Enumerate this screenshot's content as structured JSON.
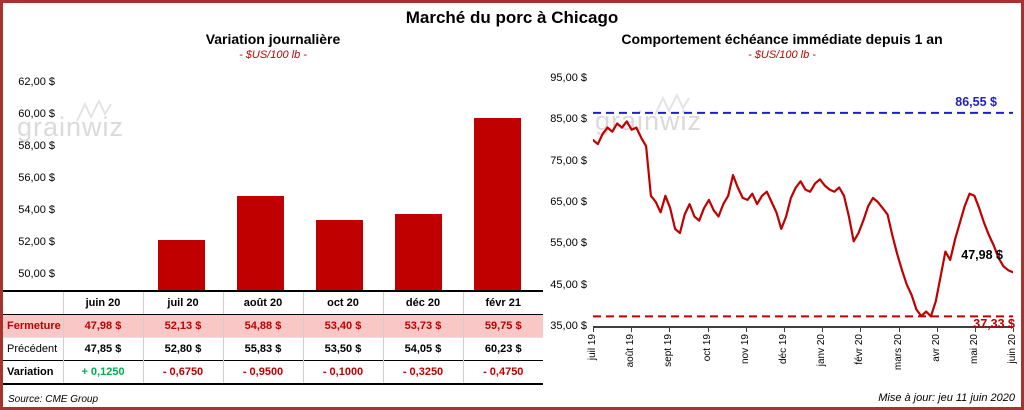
{
  "page": {
    "title": "Marché du porc à Chicago",
    "watermark": "grainwiz",
    "source_note": "Source: CME Group",
    "updated_note": "Mise à jour: jeu 11 juin 2020"
  },
  "colors": {
    "accent_red": "#C00000",
    "positive_green": "#00B050",
    "max_line_blue": "#1F1FC8",
    "row_highlight_pink": "#F9C7C6",
    "frame_border": "#A5342E",
    "watermark_gray": "#DADADA"
  },
  "table": {
    "columns": [
      "juin 20",
      "juil 20",
      "août 20",
      "oct 20",
      "déc 20",
      "févr 21"
    ],
    "rows": [
      {
        "label": "Fermeture",
        "values": [
          "47,98 $",
          "52,13 $",
          "54,88 $",
          "53,40 $",
          "53,73 $",
          "59,75 $"
        ]
      },
      {
        "label": "Précédent",
        "values": [
          "47,85 $",
          "52,80 $",
          "55,83 $",
          "53,50 $",
          "54,05 $",
          "60,23 $"
        ]
      },
      {
        "label": "Variation",
        "values": [
          "+ 0,1250",
          "- 0,6750",
          "- 0,9500",
          "- 0,1000",
          "- 0,3250",
          "- 0,4750"
        ]
      }
    ]
  },
  "chart_data": [
    {
      "type": "bar",
      "title": "Variation journalière",
      "subtitle": "- $US/100 lb -",
      "ylabel": "$US/100 lb",
      "categories": [
        "juin 20",
        "juil 20",
        "août 20",
        "oct 20",
        "déc 20",
        "févr 21"
      ],
      "values": [
        47.98,
        52.13,
        54.88,
        53.4,
        53.73,
        59.75
      ],
      "ylim": [
        50,
        62
      ],
      "ytick_values": [
        62,
        60,
        58,
        56,
        54,
        52,
        50
      ],
      "ytick_labels": [
        "62,00 $",
        "60,00 $",
        "58,00 $",
        "56,00 $",
        "54,00 $",
        "52,00 $",
        "50,00 $"
      ],
      "bar_color": "#C00000",
      "grid": false
    },
    {
      "type": "line",
      "title": "Comportement échéance immédiate depuis 1 an",
      "subtitle": "- $US/100 lb -",
      "ylabel": "$US/100 lb",
      "x_ticks": [
        "juil 19",
        "août 19",
        "sept 19",
        "oct 19",
        "nov 19",
        "déc 19",
        "janv 20",
        "févr 20",
        "mars 20",
        "avr 20",
        "mai 20",
        "juin 20"
      ],
      "values": [
        80.0,
        79.0,
        81.5,
        83.0,
        82.0,
        84.0,
        83.0,
        84.5,
        82.5,
        83.0,
        80.5,
        78.5,
        66.5,
        65.0,
        62.5,
        66.5,
        63.5,
        58.5,
        57.5,
        62.0,
        64.5,
        61.5,
        60.5,
        63.5,
        65.5,
        63.0,
        61.5,
        64.5,
        66.5,
        71.5,
        68.5,
        66.0,
        65.5,
        67.0,
        64.5,
        66.5,
        67.5,
        65.0,
        62.5,
        58.5,
        61.5,
        66.0,
        68.5,
        70.0,
        68.0,
        67.5,
        69.5,
        70.5,
        69.0,
        68.0,
        67.5,
        68.5,
        66.5,
        61.5,
        55.5,
        57.5,
        60.5,
        64.0,
        66.0,
        65.0,
        63.5,
        62.0,
        57.0,
        52.5,
        48.5,
        45.0,
        42.5,
        39.0,
        37.4,
        38.5,
        37.33,
        41.0,
        47.0,
        53.0,
        51.0,
        56.0,
        60.0,
        64.0,
        67.0,
        66.5,
        63.5,
        60.0,
        57.0,
        54.5,
        51.5,
        49.5,
        48.5,
        47.98
      ],
      "ylim": [
        35,
        95
      ],
      "ytick_values": [
        95,
        85,
        75,
        65,
        55,
        45,
        35
      ],
      "ytick_labels": [
        "95,00 $",
        "85,00 $",
        "75,00 $",
        "65,00 $",
        "55,00 $",
        "45,00 $",
        "35,00 $"
      ],
      "line_color": "#C00000",
      "max_line": {
        "value": 86.55,
        "label": "86,55 $",
        "color": "#1F1FC8"
      },
      "min_line": {
        "value": 37.33,
        "label": "37,33 $",
        "color": "#C00000"
      },
      "last_point": {
        "value": 47.98,
        "label": "47,98 $"
      },
      "grid": false,
      "legend": "none"
    }
  ]
}
